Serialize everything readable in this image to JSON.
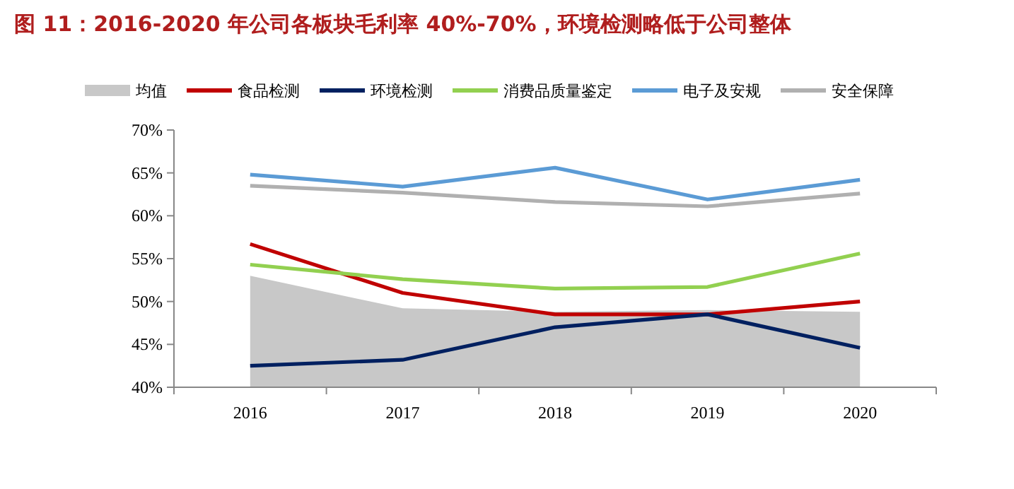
{
  "chart_data": {
    "type": "line",
    "title": "图 11：2016-2020 年公司各板块毛利率 40%-70%，环境检测略低于公司整体",
    "categories": [
      "2016",
      "2017",
      "2018",
      "2019",
      "2020"
    ],
    "series": [
      {
        "name": "均值",
        "type": "area",
        "color": "#c8c8c8",
        "values": [
          53.0,
          49.2,
          48.8,
          49.0,
          48.8
        ]
      },
      {
        "name": "食品检测",
        "color": "#c00000",
        "values": [
          56.7,
          51.0,
          48.5,
          48.5,
          50.0
        ]
      },
      {
        "name": "环境检测",
        "color": "#002060",
        "values": [
          42.5,
          43.2,
          47.0,
          48.5,
          44.6
        ]
      },
      {
        "name": "消费品质量鉴定",
        "color": "#92d050",
        "values": [
          54.3,
          52.6,
          51.5,
          51.7,
          55.6
        ]
      },
      {
        "name": "电子及安规",
        "color": "#5b9bd5",
        "values": [
          64.8,
          63.4,
          65.6,
          61.9,
          64.2
        ]
      },
      {
        "name": "安全保障",
        "color": "#b0b0b0",
        "values": [
          63.5,
          62.7,
          61.6,
          61.1,
          62.6
        ]
      }
    ],
    "ylim": [
      40,
      70
    ],
    "yticks": [
      {
        "value": 40,
        "label": "40%"
      },
      {
        "value": 45,
        "label": "45%"
      },
      {
        "value": 50,
        "label": "50%"
      },
      {
        "value": 55,
        "label": "55%"
      },
      {
        "value": 60,
        "label": "60%"
      },
      {
        "value": 65,
        "label": "65%"
      },
      {
        "value": 70,
        "label": "70%"
      }
    ],
    "legend": "top",
    "grid": false,
    "marker": "none",
    "line_style": "solid"
  }
}
